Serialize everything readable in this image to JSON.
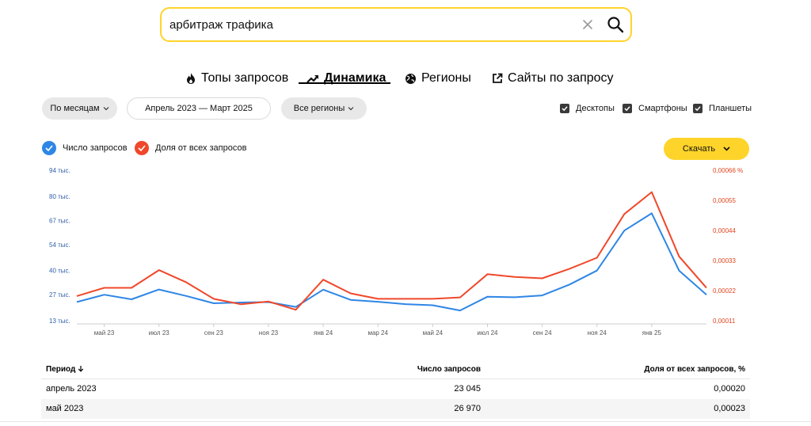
{
  "search": {
    "value": "арбитраж трафика",
    "clear_icon": "close-icon",
    "search_icon": "search-icon"
  },
  "tabs": [
    {
      "label": "Топы запросов",
      "icon": "fire-icon",
      "active": false
    },
    {
      "label": "Динамика",
      "icon": "trend-icon",
      "active": true
    },
    {
      "label": "Регионы",
      "icon": "globe-icon",
      "active": false
    },
    {
      "label": "Сайты по запросу",
      "icon": "external-link-icon",
      "active": false
    }
  ],
  "filters": {
    "period_group": "По месяцам",
    "date_range": "Апрель 2023 — Март 2025",
    "regions": "Все регионы"
  },
  "devices": [
    {
      "label": "Десктопы",
      "checked": true
    },
    {
      "label": "Смартфоны",
      "checked": true
    },
    {
      "label": "Планшеты",
      "checked": true
    }
  ],
  "legend": [
    {
      "label": "Число запросов",
      "color": "#2e86e5"
    },
    {
      "label": "Доля от всех запросов",
      "color": "#f0482a"
    }
  ],
  "download_label": "Скачать",
  "chart_data": {
    "type": "line",
    "x": [
      "апр 23",
      "май 23",
      "июн 23",
      "июл 23",
      "авг 23",
      "сен 23",
      "окт 23",
      "ноя 23",
      "дек 23",
      "янв 24",
      "фев 24",
      "мар 24",
      "апр 24",
      "май 24",
      "июн 24",
      "июл 24",
      "авг 24",
      "сен 24",
      "окт 24",
      "ноя 24",
      "дек 24",
      "янв 25",
      "фев 25",
      "мар 25"
    ],
    "x_tick_labels": [
      {
        "index": 1,
        "label": "май 23"
      },
      {
        "index": 3,
        "label": "июл 23"
      },
      {
        "index": 5,
        "label": "сен 23"
      },
      {
        "index": 7,
        "label": "ноя 23"
      },
      {
        "index": 9,
        "label": "янв 24"
      },
      {
        "index": 11,
        "label": "мар 24"
      },
      {
        "index": 13,
        "label": "май 24"
      },
      {
        "index": 15,
        "label": "июл 24"
      },
      {
        "index": 17,
        "label": "сен 24"
      },
      {
        "index": 19,
        "label": "ноя 24"
      },
      {
        "index": 21,
        "label": "янв 25"
      }
    ],
    "series": [
      {
        "name": "Число запросов",
        "axis": "left",
        "color": "#2e86e5",
        "values": [
          23045,
          26970,
          24500,
          29800,
          26300,
          22400,
          22800,
          23000,
          20400,
          29700,
          24200,
          23200,
          21900,
          21300,
          18500,
          25900,
          25600,
          26600,
          32500,
          40000,
          61500,
          70800,
          40000,
          27000
        ]
      },
      {
        "name": "Доля от всех запросов",
        "axis": "right",
        "color": "#f0482a",
        "values": [
          0.0002,
          0.00023,
          0.00023,
          0.000295,
          0.00025,
          0.00019,
          0.00017,
          0.00018,
          0.00015,
          0.00026,
          0.00021,
          0.00019,
          0.00019,
          0.00019,
          0.000195,
          0.00028,
          0.00027,
          0.000265,
          0.0003,
          0.00034,
          0.0005,
          0.00058,
          0.000345,
          0.00023
        ]
      }
    ],
    "y_left": {
      "ticks": [
        13,
        27,
        40,
        54,
        67,
        80,
        94
      ],
      "tick_labels": [
        "13 тыс.",
        "27 тыс.",
        "40 тыс.",
        "54 тыс.",
        "67 тыс.",
        "80 тыс.",
        "94 тыс."
      ],
      "unit": "тыс."
    },
    "y_right": {
      "ticks": [
        0.00011,
        0.00022,
        0.00033,
        0.00044,
        0.00055,
        0.00066
      ],
      "tick_labels": [
        "0,00011",
        "0,00022",
        "0,00033",
        "0,00044",
        "0,00055",
        "0,00066 %"
      ]
    },
    "colors": {
      "axis_left": "#2e5fa8",
      "axis_right": "#e0451f",
      "axis_line": "#cccccc"
    }
  },
  "table": {
    "headers": {
      "period": "Период",
      "count": "Число запросов",
      "share": "Доля от всех запросов, %"
    },
    "sort_icon": "arrow-down-icon",
    "rows": [
      {
        "period": "апрель 2023",
        "count": "23 045",
        "share": "0,00020"
      },
      {
        "period": "май 2023",
        "count": "26 970",
        "share": "0,00023"
      }
    ]
  }
}
